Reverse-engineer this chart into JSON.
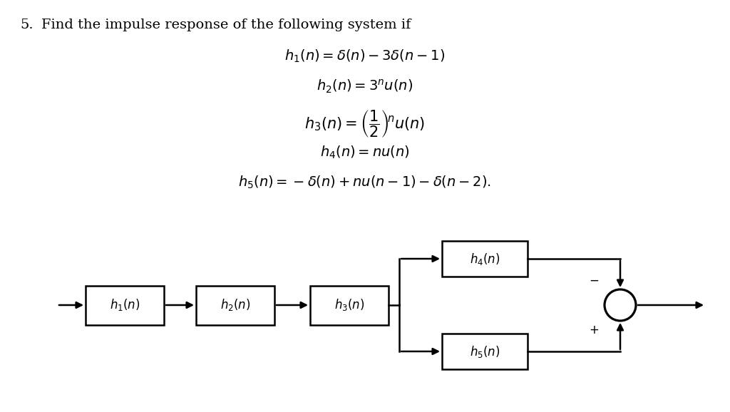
{
  "background_color": "#ffffff",
  "text_color": "#000000",
  "title_num": "5.",
  "title_text": "Find the impulse response of the following system if",
  "eq1": "$h_1(n) = \\delta(n) - 3\\delta(n-1)$",
  "eq2": "$h_2(n) = 3^n u(n)$",
  "eq3": "$h_3(n) = \\left(\\dfrac{1}{2}\\right)^{\\!n} u(n)$",
  "eq4": "$h_4(n) = nu(n)$",
  "eq5": "$h_5(n) = -\\delta(n) + nu(n-1) - \\delta(n-2).$",
  "font_size_title": 14,
  "font_size_eq": 14,
  "font_size_box": 12,
  "lw": 1.8
}
